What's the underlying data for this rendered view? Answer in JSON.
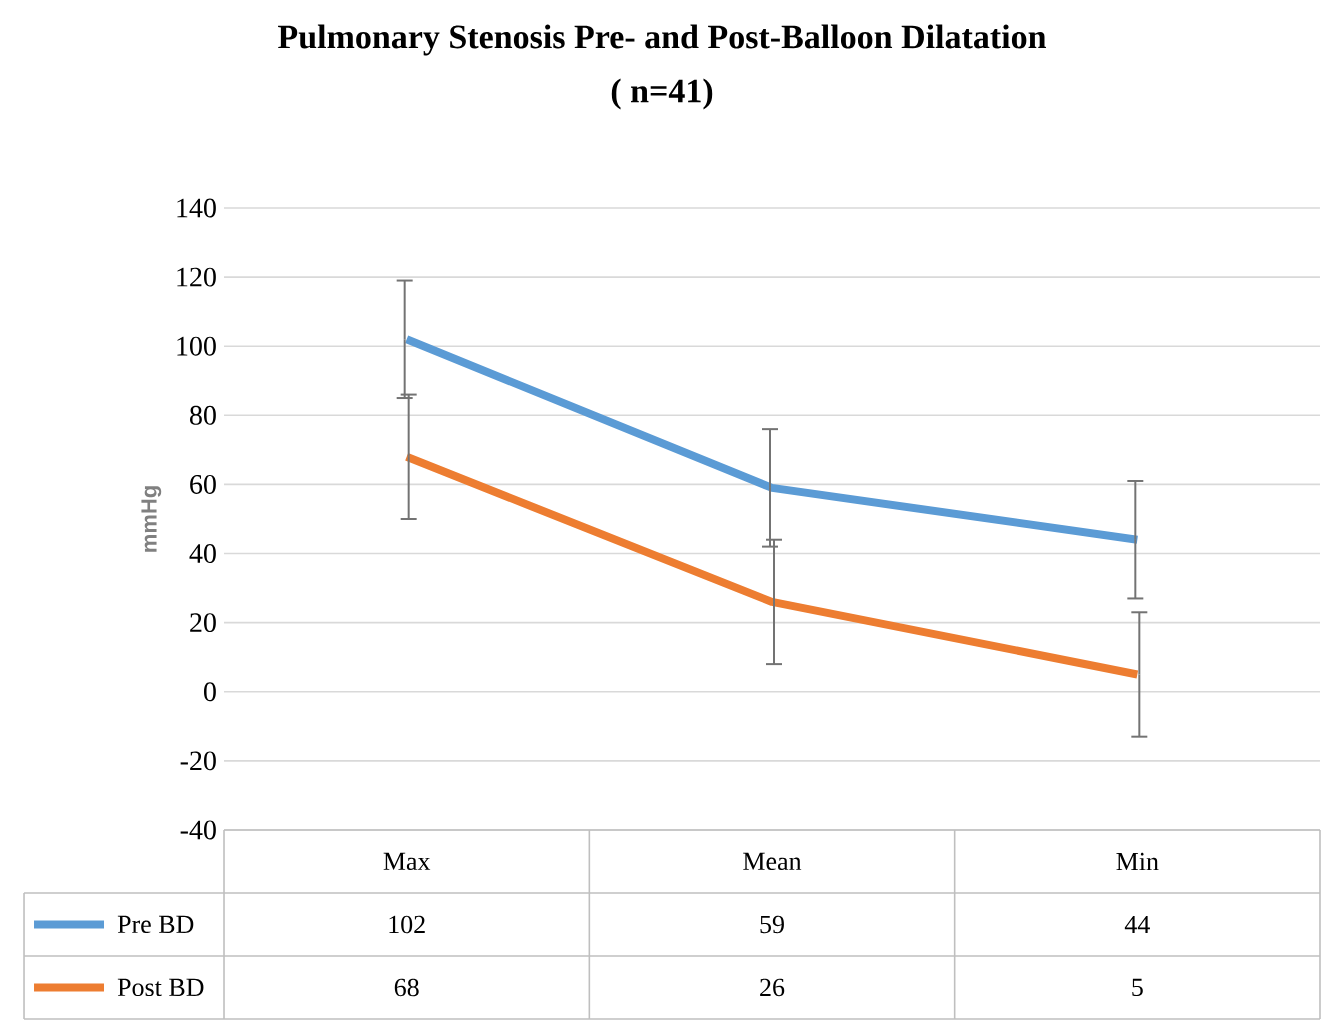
{
  "chart_data": {
    "type": "line",
    "title": "Pulmonary Stenosis Pre- and Post-Balloon Dilatation",
    "subtitle": "( n=41)",
    "ylabel": "mmHg",
    "categories": [
      "Max",
      "Mean",
      "Min"
    ],
    "series": [
      {
        "name": "Pre BD",
        "color": "#5b9bd5",
        "values": [
          102,
          59,
          44
        ],
        "errors": [
          17,
          17,
          17
        ]
      },
      {
        "name": "Post BD",
        "color": "#ed7d31",
        "values": [
          68,
          26,
          5
        ],
        "errors": [
          18,
          18,
          18
        ]
      }
    ],
    "ylim": [
      -40,
      140
    ],
    "yticks": [
      -40,
      -20,
      0,
      20,
      40,
      60,
      80,
      100,
      120,
      140
    ],
    "grid": "y",
    "legend": "bottom",
    "data_labels": true,
    "marker": "none",
    "line_style": "solid"
  }
}
